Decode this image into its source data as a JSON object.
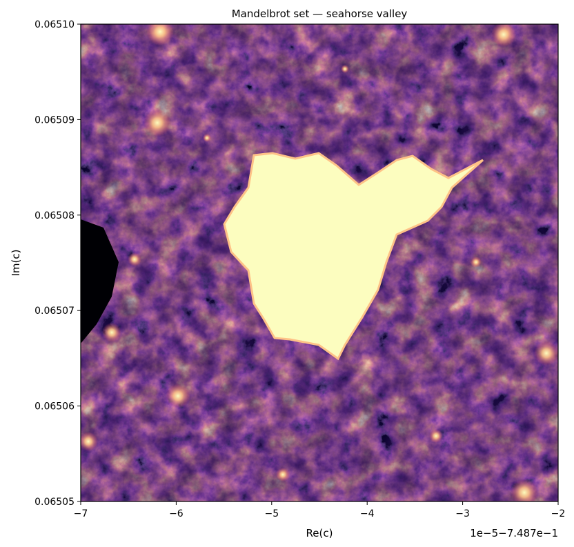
{
  "chart_data": {
    "type": "heatmap",
    "title": "Mandelbrot set — seahorse valley",
    "xlabel": "Re(c)",
    "ylabel": "Im(c)",
    "x_offset_label": "1e−5−7.487e−1",
    "xlim": [
      -7,
      -2
    ],
    "ylim": [
      0.06505,
      0.0651
    ],
    "x_ticks": [
      "−7",
      "−6",
      "−5",
      "−4",
      "−3",
      "−2"
    ],
    "x_tick_values": [
      -7,
      -6,
      -5,
      -4,
      -3,
      -2
    ],
    "y_ticks": [
      "0.06505",
      "0.06506",
      "0.06507",
      "0.06508",
      "0.06509",
      "0.06510"
    ],
    "y_tick_values": [
      0.06505,
      0.06506,
      0.06507,
      0.06508,
      0.06509,
      0.0651
    ],
    "colormap": "magma",
    "colormap_stops": [
      "#000004",
      "#1c1044",
      "#4f127b",
      "#812581",
      "#b5367a",
      "#e55064",
      "#fb8761",
      "#fec287",
      "#fcfdbf"
    ],
    "grid": false
  }
}
